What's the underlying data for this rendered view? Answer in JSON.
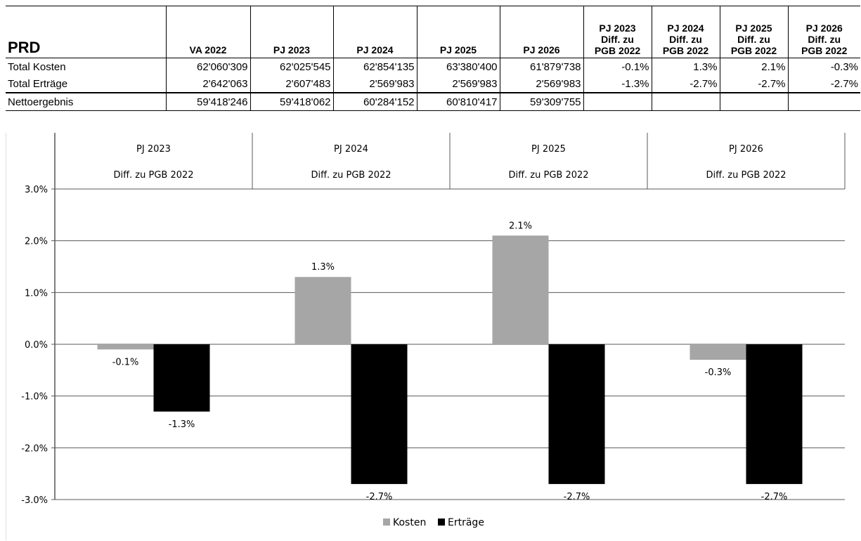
{
  "table": {
    "title": "PRD",
    "columns": [
      "VA 2022",
      "PJ 2023",
      "PJ 2024",
      "PJ 2025",
      "PJ 2026"
    ],
    "diff_columns": [
      {
        "year": "PJ 2023",
        "line1": "Diff. zu",
        "line2": "PGB 2022"
      },
      {
        "year": "PJ 2024",
        "line1": "Diff. zu",
        "line2": "PGB 2022"
      },
      {
        "year": "PJ 2025",
        "line1": "Diff. zu",
        "line2": "PGB 2022"
      },
      {
        "year": "PJ 2026",
        "line1": "Diff. zu",
        "line2": "PGB 2022"
      }
    ],
    "rows": [
      {
        "label": "Total Kosten",
        "values": [
          "62'060'309",
          "62'025'545",
          "62'854'135",
          "63'380'400",
          "61'879'738"
        ],
        "diffs": [
          "-0.1%",
          "1.3%",
          "2.1%",
          "-0.3%"
        ]
      },
      {
        "label": "Total Erträge",
        "values": [
          "2'642'063",
          "2'607'483",
          "2'569'983",
          "2'569'983",
          "2'569'983"
        ],
        "diffs": [
          "-1.3%",
          "-2.7%",
          "-2.7%",
          "-2.7%"
        ]
      },
      {
        "label": "Nettoergebnis",
        "values": [
          "59'418'246",
          "59'418'062",
          "60'284'152",
          "60'810'417",
          "59'309'755"
        ],
        "diffs": [
          "",
          "",
          "",
          ""
        ]
      }
    ]
  },
  "chart_data": {
    "type": "bar",
    "categories": [
      {
        "line1": "PJ 2023",
        "line2": "Diff. zu PGB 2022"
      },
      {
        "line1": "PJ 2024",
        "line2": "Diff. zu PGB 2022"
      },
      {
        "line1": "PJ 2025",
        "line2": "Diff. zu PGB 2022"
      },
      {
        "line1": "PJ 2026",
        "line2": "Diff. zu PGB 2022"
      }
    ],
    "series": [
      {
        "name": "Kosten",
        "color": "#a6a6a6",
        "values": [
          -0.1,
          1.3,
          2.1,
          -0.3
        ],
        "labels": [
          "-0.1%",
          "1.3%",
          "2.1%",
          "-0.3%"
        ]
      },
      {
        "name": "Erträge",
        "color": "#000000",
        "values": [
          -1.3,
          -2.7,
          -2.7,
          -2.7
        ],
        "labels": [
          "-1.3%",
          "-2.7%",
          "-2.7%",
          "-2.7%"
        ]
      }
    ],
    "ylim": [
      -3.0,
      3.0
    ],
    "yticks": [
      3.0,
      2.0,
      1.0,
      0.0,
      -1.0,
      -2.0,
      -3.0
    ],
    "ytick_labels": [
      "3.0%",
      "2.0%",
      "1.0%",
      "0.0%",
      "-1.0%",
      "-2.0%",
      "-3.0%"
    ],
    "grid": true,
    "legend_position": "bottom-center",
    "category_axis_position": "top"
  }
}
